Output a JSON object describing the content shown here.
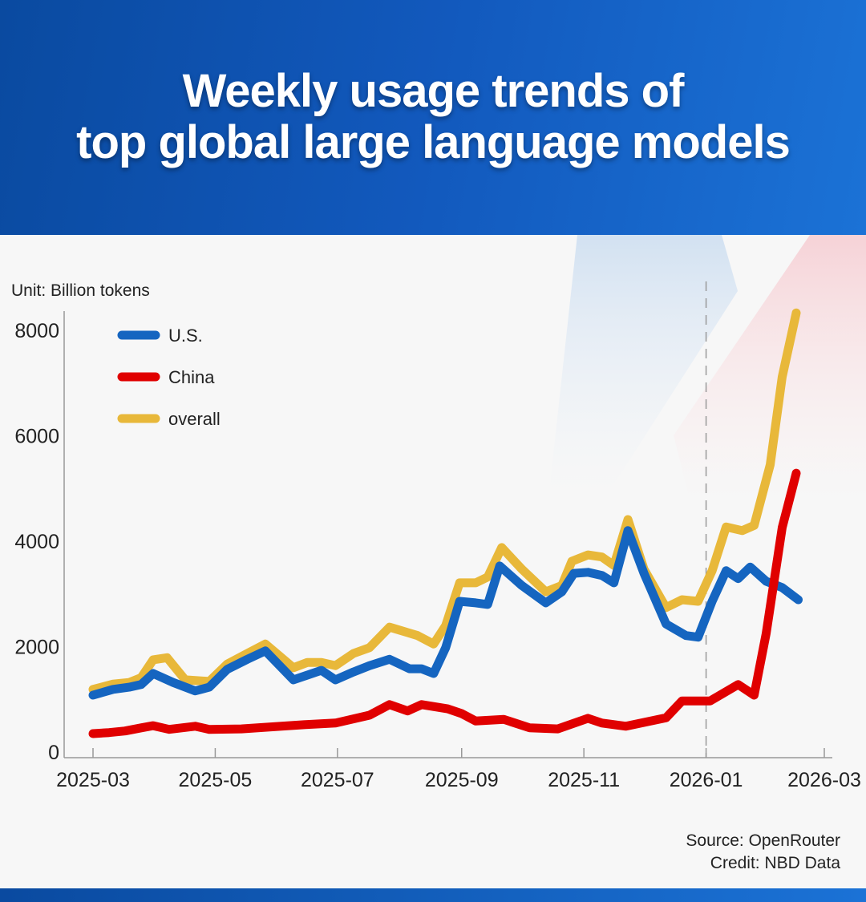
{
  "header": {
    "title_line1": "Weekly usage trends of",
    "title_line2": "top global large language models"
  },
  "footer": {
    "source": "Source: OpenRouter",
    "credit": "Credit: NBD Data"
  },
  "chart_data": {
    "type": "line",
    "title": "Weekly usage trends of top global large language models",
    "unit_label": "Unit: Billion tokens",
    "xlim": [
      "2025-03-01",
      "2026-03-01"
    ],
    "ylim": [
      0,
      8000
    ],
    "x_ticks": [
      "2025-03",
      "2025-05",
      "2025-07",
      "2025-09",
      "2025-11",
      "2026-01",
      "2026-03"
    ],
    "x_tick_dates": [
      "2025-03-01",
      "2025-05-01",
      "2025-07-01",
      "2025-09-01",
      "2025-11-01",
      "2026-01-01",
      "2026-03-01"
    ],
    "y_ticks": [
      0,
      2000,
      4000,
      6000,
      8000
    ],
    "grid": false,
    "reference_line": {
      "date": "2026-01-01",
      "style": "dashed"
    },
    "legend_position": "top-left",
    "series": [
      {
        "name": "U.S.",
        "color": "#1565c0",
        "points": [
          [
            "2025-03-01",
            1080
          ],
          [
            "2025-03-11",
            1190
          ],
          [
            "2025-03-19",
            1230
          ],
          [
            "2025-03-25",
            1280
          ],
          [
            "2025-03-31",
            1490
          ],
          [
            "2025-04-10",
            1320
          ],
          [
            "2025-04-21",
            1160
          ],
          [
            "2025-04-28",
            1230
          ],
          [
            "2025-05-07",
            1570
          ],
          [
            "2025-05-17",
            1760
          ],
          [
            "2025-05-26",
            1920
          ],
          [
            "2025-06-09",
            1370
          ],
          [
            "2025-06-23",
            1550
          ],
          [
            "2025-06-30",
            1370
          ],
          [
            "2025-07-09",
            1520
          ],
          [
            "2025-07-17",
            1640
          ],
          [
            "2025-07-27",
            1760
          ],
          [
            "2025-08-06",
            1580
          ],
          [
            "2025-08-12",
            1580
          ],
          [
            "2025-08-18",
            1490
          ],
          [
            "2025-08-24",
            1980
          ],
          [
            "2025-08-31",
            2860
          ],
          [
            "2025-09-08",
            2830
          ],
          [
            "2025-09-14",
            2800
          ],
          [
            "2025-09-20",
            3530
          ],
          [
            "2025-10-01",
            3160
          ],
          [
            "2025-10-13",
            2830
          ],
          [
            "2025-10-21",
            3040
          ],
          [
            "2025-10-27",
            3390
          ],
          [
            "2025-11-03",
            3410
          ],
          [
            "2025-11-10",
            3350
          ],
          [
            "2025-11-16",
            3210
          ],
          [
            "2025-11-23",
            4200
          ],
          [
            "2025-12-01",
            3390
          ],
          [
            "2025-12-12",
            2430
          ],
          [
            "2025-12-22",
            2210
          ],
          [
            "2025-12-28",
            2180
          ],
          [
            "2026-01-04",
            2860
          ],
          [
            "2026-01-11",
            3440
          ],
          [
            "2026-01-17",
            3290
          ],
          [
            "2026-01-23",
            3510
          ],
          [
            "2026-01-31",
            3240
          ],
          [
            "2026-02-08",
            3120
          ],
          [
            "2026-02-16",
            2890
          ]
        ]
      },
      {
        "name": "China",
        "color": "#e00000",
        "points": [
          [
            "2025-03-01",
            350
          ],
          [
            "2025-03-09",
            370
          ],
          [
            "2025-03-17",
            400
          ],
          [
            "2025-03-25",
            460
          ],
          [
            "2025-03-31",
            500
          ],
          [
            "2025-04-08",
            430
          ],
          [
            "2025-04-21",
            490
          ],
          [
            "2025-04-28",
            430
          ],
          [
            "2025-05-14",
            440
          ],
          [
            "2025-06-03",
            490
          ],
          [
            "2025-06-15",
            520
          ],
          [
            "2025-06-30",
            550
          ],
          [
            "2025-07-17",
            700
          ],
          [
            "2025-07-27",
            900
          ],
          [
            "2025-08-05",
            780
          ],
          [
            "2025-08-12",
            900
          ],
          [
            "2025-08-25",
            820
          ],
          [
            "2025-09-01",
            730
          ],
          [
            "2025-09-08",
            590
          ],
          [
            "2025-09-22",
            620
          ],
          [
            "2025-10-05",
            460
          ],
          [
            "2025-10-19",
            440
          ],
          [
            "2025-11-03",
            640
          ],
          [
            "2025-11-10",
            550
          ],
          [
            "2025-11-22",
            490
          ],
          [
            "2025-12-12",
            650
          ],
          [
            "2025-12-20",
            970
          ],
          [
            "2026-01-03",
            970
          ],
          [
            "2026-01-17",
            1280
          ],
          [
            "2026-01-25",
            1080
          ],
          [
            "2026-01-31",
            2250
          ],
          [
            "2026-02-08",
            4260
          ],
          [
            "2026-02-15",
            5290
          ]
        ]
      },
      {
        "name": "overall",
        "color": "#e8b83a",
        "points": [
          [
            "2025-03-01",
            1190
          ],
          [
            "2025-03-11",
            1290
          ],
          [
            "2025-03-19",
            1320
          ],
          [
            "2025-03-25",
            1410
          ],
          [
            "2025-03-31",
            1750
          ],
          [
            "2025-04-07",
            1790
          ],
          [
            "2025-04-16",
            1370
          ],
          [
            "2025-04-28",
            1340
          ],
          [
            "2025-05-07",
            1670
          ],
          [
            "2025-05-17",
            1870
          ],
          [
            "2025-05-26",
            2050
          ],
          [
            "2025-06-09",
            1600
          ],
          [
            "2025-06-16",
            1700
          ],
          [
            "2025-06-23",
            1700
          ],
          [
            "2025-06-30",
            1640
          ],
          [
            "2025-07-09",
            1870
          ],
          [
            "2025-07-17",
            1980
          ],
          [
            "2025-07-27",
            2370
          ],
          [
            "2025-08-10",
            2210
          ],
          [
            "2025-08-18",
            2050
          ],
          [
            "2025-08-24",
            2400
          ],
          [
            "2025-08-31",
            3210
          ],
          [
            "2025-09-08",
            3210
          ],
          [
            "2025-09-14",
            3320
          ],
          [
            "2025-09-21",
            3880
          ],
          [
            "2025-10-01",
            3470
          ],
          [
            "2025-10-13",
            3040
          ],
          [
            "2025-10-21",
            3160
          ],
          [
            "2025-10-26",
            3620
          ],
          [
            "2025-11-03",
            3740
          ],
          [
            "2025-11-10",
            3700
          ],
          [
            "2025-11-16",
            3540
          ],
          [
            "2025-11-23",
            4410
          ],
          [
            "2025-12-01",
            3470
          ],
          [
            "2025-12-12",
            2740
          ],
          [
            "2025-12-20",
            2890
          ],
          [
            "2025-12-28",
            2860
          ],
          [
            "2026-01-04",
            3440
          ],
          [
            "2026-01-11",
            4270
          ],
          [
            "2026-01-19",
            4200
          ],
          [
            "2026-01-25",
            4300
          ],
          [
            "2026-02-02",
            5450
          ],
          [
            "2026-02-08",
            7120
          ],
          [
            "2026-02-15",
            8330
          ]
        ]
      }
    ]
  }
}
